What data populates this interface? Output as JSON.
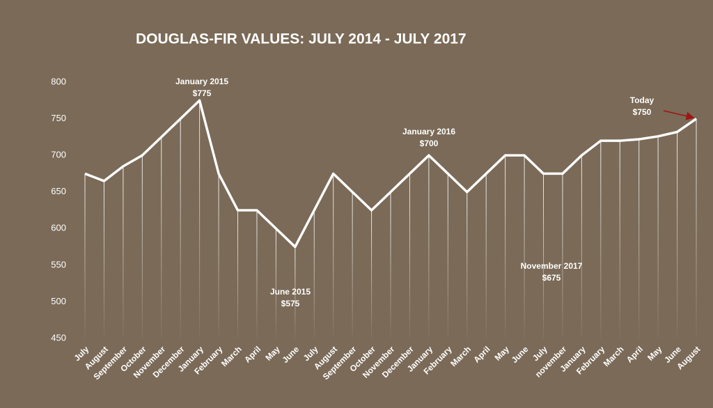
{
  "chart_data": {
    "type": "line",
    "title": "DOUGLAS-FIR VALUES: JULY 2014 - JULY 2017",
    "categories": [
      "July",
      "August",
      "September",
      "October",
      "November",
      "December",
      "January",
      "February",
      "March",
      "April",
      "May",
      "June",
      "July",
      "August",
      "September",
      "October",
      "November",
      "December",
      "January",
      "February",
      "March",
      "April",
      "May",
      "June",
      "July",
      "november",
      "January",
      "February",
      "March",
      "April",
      "May",
      "June",
      "August"
    ],
    "values": [
      675,
      665,
      685,
      700,
      725,
      750,
      775,
      675,
      625,
      625,
      600,
      575,
      625,
      675,
      650,
      625,
      650,
      675,
      700,
      675,
      650,
      675,
      700,
      700,
      675,
      675,
      700,
      720,
      720,
      722,
      726,
      732,
      750
    ],
    "color": "#ffffff",
    "ylim": [
      450,
      800
    ],
    "yticks": [
      450,
      500,
      550,
      600,
      650,
      700,
      750,
      800
    ],
    "grid": false,
    "annotations": [
      {
        "text": "January 2015",
        "label": "$775"
      },
      {
        "text": "June 2015",
        "label": "$575"
      },
      {
        "text": "January 2016",
        "label": "$700"
      },
      {
        "text": "November 2017",
        "label": "$675"
      },
      {
        "text": "Today",
        "label": "$750"
      }
    ]
  }
}
